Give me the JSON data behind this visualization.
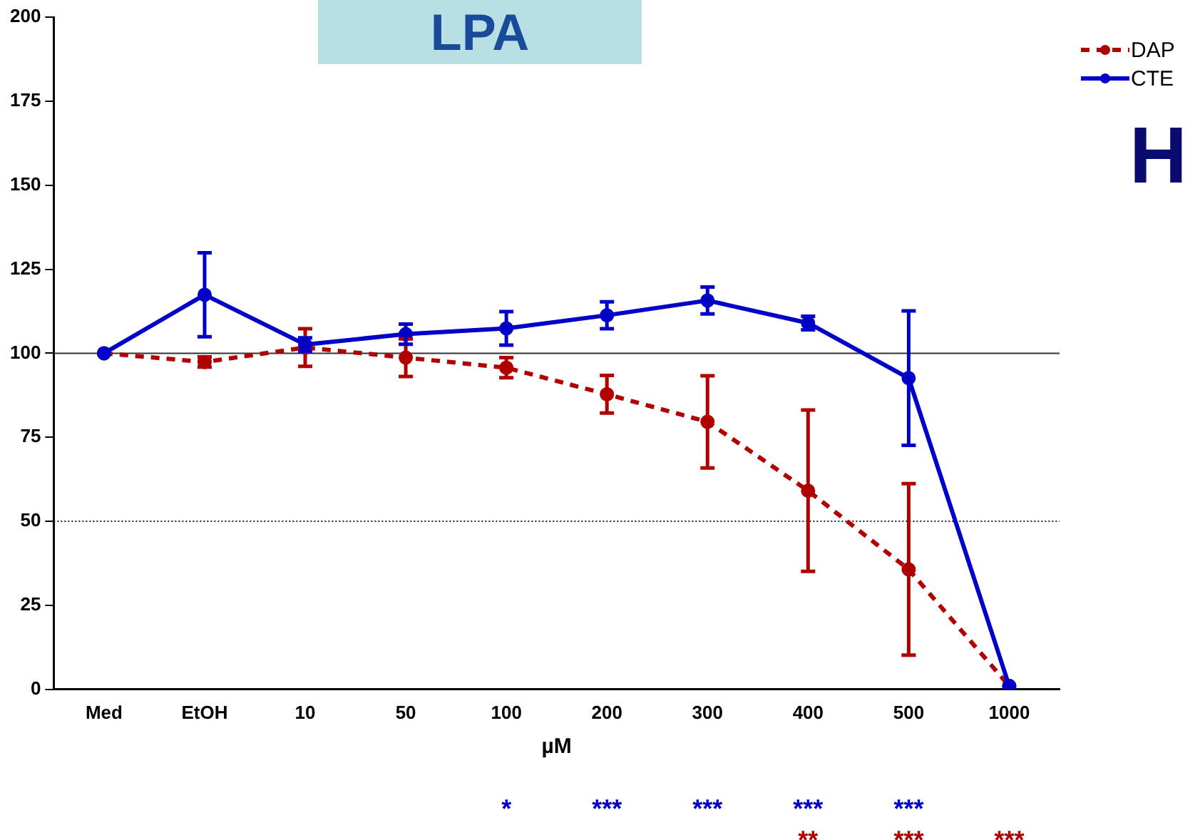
{
  "chart_data": {
    "type": "line",
    "xlabel": "µM",
    "categories": [
      "Med",
      "EtOH",
      "10",
      "50",
      "100",
      "200",
      "300",
      "400",
      "500",
      "1000"
    ],
    "series": [
      {
        "name": "DAP",
        "color": "#b00000",
        "line_style": "dashed",
        "values": [
          100,
          97.4,
          101.7,
          98.7,
          95.7,
          87.8,
          79.6,
          59.1,
          35.7,
          1
        ],
        "errors": [
          null,
          1.5,
          5.6,
          5.6,
          3,
          5.6,
          13.7,
          24,
          25.5,
          null
        ]
      },
      {
        "name": "CTE",
        "color": "#0000c8",
        "line_style": "solid",
        "values": [
          100,
          117.4,
          102.6,
          105.7,
          107.4,
          111.3,
          115.7,
          109,
          92.6,
          1
        ],
        "errors": [
          null,
          12.5,
          2,
          3,
          5,
          4,
          4,
          2,
          20,
          null
        ]
      }
    ],
    "ylim": [
      0,
      200
    ],
    "yticks": [
      0,
      25,
      50,
      75,
      100,
      125,
      150,
      175,
      200
    ],
    "grid": false,
    "legend": "top right",
    "marker": "circle",
    "ref_lines": [
      {
        "axis": "y",
        "value": 100,
        "color": "#333333",
        "line_style": "solid"
      },
      {
        "axis": "y",
        "value": 50,
        "color": "#222222",
        "line_style": "dotted"
      }
    ],
    "annotations": [
      "LPA",
      "H",
      "* *** *** *** ***",
      "** *** ***"
    ]
  }
}
